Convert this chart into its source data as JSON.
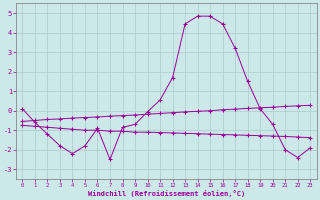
{
  "x": [
    0,
    1,
    2,
    3,
    4,
    5,
    6,
    7,
    8,
    9,
    10,
    11,
    12,
    13,
    14,
    15,
    16,
    17,
    18,
    19,
    20,
    21,
    22,
    23
  ],
  "main_data": [
    0.1,
    -0.6,
    -1.2,
    -1.8,
    -2.2,
    -1.8,
    -0.9,
    -2.5,
    -0.85,
    -0.7,
    -0.05,
    0.55,
    1.7,
    4.45,
    4.85,
    4.85,
    4.45,
    3.2,
    1.5,
    0.1,
    -0.7,
    -2.0,
    -2.4,
    -1.9
  ],
  "upper_line": [
    -0.55,
    -0.5,
    -0.45,
    -0.42,
    -0.38,
    -0.35,
    -0.32,
    -0.28,
    -0.25,
    -0.22,
    -0.18,
    -0.14,
    -0.1,
    -0.06,
    -0.03,
    0.0,
    0.05,
    0.08,
    0.12,
    0.15,
    0.18,
    0.22,
    0.25,
    0.28
  ],
  "lower_line": [
    -0.75,
    -0.8,
    -0.85,
    -0.9,
    -0.95,
    -1.0,
    -1.0,
    -1.05,
    -1.05,
    -1.1,
    -1.1,
    -1.12,
    -1.14,
    -1.16,
    -1.18,
    -1.2,
    -1.22,
    -1.24,
    -1.26,
    -1.28,
    -1.3,
    -1.32,
    -1.35,
    -1.38
  ],
  "background_color": "#cce8e8",
  "grid_color": "#aacccc",
  "line_color": "#990099",
  "xlabel": "Windchill (Refroidissement éolien,°C)",
  "ylim": [
    -3.5,
    5.5
  ],
  "xlim": [
    -0.5,
    23.5
  ],
  "yticks": [
    -3,
    -2,
    -1,
    0,
    1,
    2,
    3,
    4,
    5
  ],
  "xticks": [
    0,
    1,
    2,
    3,
    4,
    5,
    6,
    7,
    8,
    9,
    10,
    11,
    12,
    13,
    14,
    15,
    16,
    17,
    18,
    19,
    20,
    21,
    22,
    23
  ]
}
